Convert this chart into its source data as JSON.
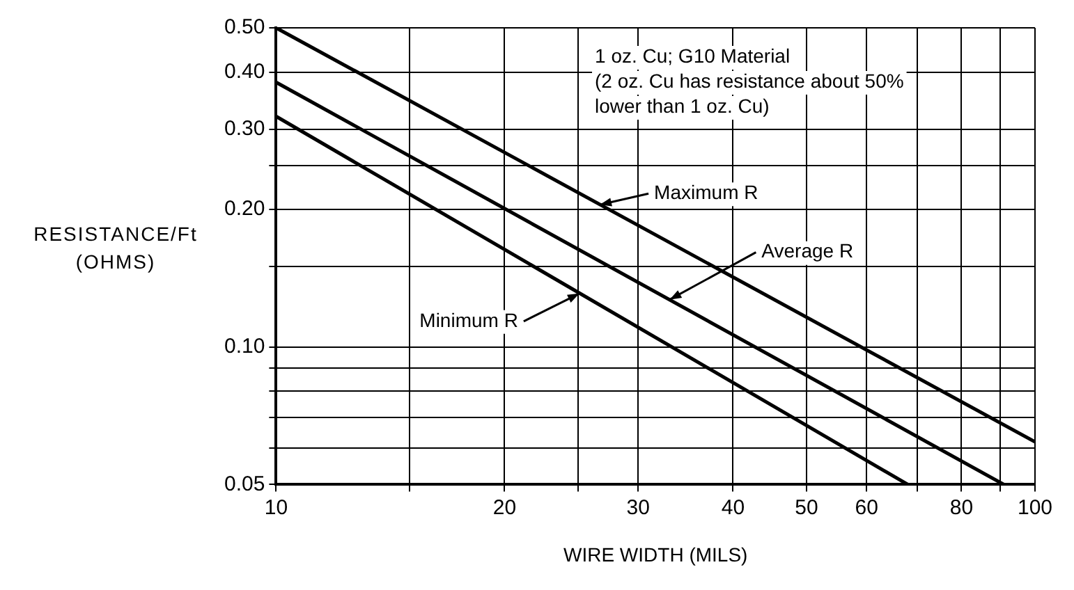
{
  "chart_data": {
    "type": "line",
    "xlabel": "WIRE WIDTH (MILS)",
    "ylabel": "RESISTANCE/Ft (OHMS)",
    "log": "xy",
    "grid": true,
    "legend": false,
    "marker": "none",
    "line_style": "solid",
    "xlim": [
      10,
      100
    ],
    "ylim": [
      0.05,
      0.5
    ],
    "xticks": [
      10,
      {
        "value": 15,
        "label": null
      },
      20,
      {
        "value": 25,
        "label": null
      },
      30,
      40,
      50,
      60,
      {
        "value": 70,
        "label": null
      },
      80,
      {
        "value": 90,
        "label": null
      },
      100
    ],
    "yticks": [
      {
        "value": 0.05,
        "label": "0.05"
      },
      {
        "value": 0.06,
        "label": null
      },
      {
        "value": 0.07,
        "label": null
      },
      {
        "value": 0.08,
        "label": null
      },
      {
        "value": 0.09,
        "label": null
      },
      {
        "value": 0.1,
        "label": "0.10"
      },
      {
        "value": 0.15,
        "label": null
      },
      {
        "value": 0.2,
        "label": "0.20"
      },
      {
        "value": 0.25,
        "label": null
      },
      {
        "value": 0.3,
        "label": "0.30"
      },
      {
        "value": 0.4,
        "label": "0.40"
      },
      {
        "value": 0.5,
        "label": "0.50"
      }
    ],
    "series": [
      {
        "color": "#000000",
        "x": [
          10,
          100
        ],
        "values": [
          0.5,
          0.062
        ]
      },
      {
        "color": "#000000",
        "x": [
          10,
          91
        ],
        "values": [
          0.38,
          0.05
        ]
      },
      {
        "color": "#000000",
        "x": [
          10,
          68
        ],
        "values": [
          0.32,
          0.05
        ]
      }
    ],
    "annotations": [
      "1 oz. Cu; G10 Material",
      "(2 oz. Cu has resistance about 50% lower than 1 oz. Cu)",
      {
        "text": "Maximum R",
        "x": 26.7,
        "y": 0.205
      },
      {
        "text": "Average R",
        "x": 33,
        "y": 0.127
      },
      {
        "text": "Minimum R",
        "x": 25.1,
        "y": 0.131
      }
    ]
  }
}
